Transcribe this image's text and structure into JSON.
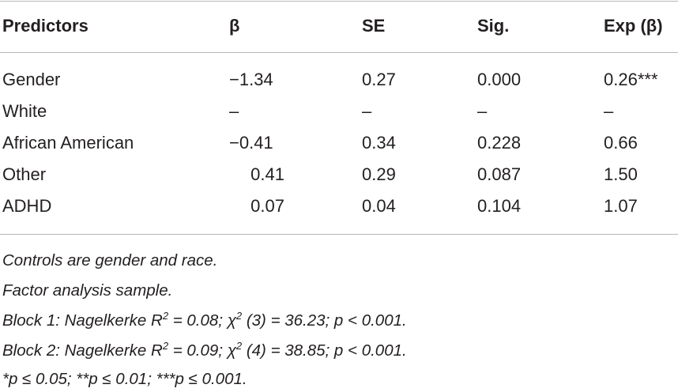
{
  "table": {
    "headers": [
      "Predictors",
      "β",
      "SE",
      "Sig.",
      "Exp (β)"
    ],
    "rows": [
      {
        "predictor": "Gender",
        "beta": "−1.34",
        "se": "0.27",
        "sig": "0.000",
        "exp": "0.26***"
      },
      {
        "predictor": "White",
        "beta": "–",
        "se": "–",
        "sig": "–",
        "exp": "–"
      },
      {
        "predictor": "African American",
        "beta": "−0.41",
        "se": "0.34",
        "sig": "0.228",
        "exp": "0.66"
      },
      {
        "predictor": "Other",
        "beta": "0.41",
        "se": "0.29",
        "sig": "0.087",
        "exp": "1.50"
      },
      {
        "predictor": "ADHD",
        "beta": "0.07",
        "se": "0.04",
        "sig": "0.104",
        "exp": "1.07"
      }
    ]
  },
  "notes": {
    "n1": "Controls are gender and race.",
    "n2": "Factor analysis sample.",
    "block1": {
      "prefix": "Block 1: Nagelkerke R",
      "sup1": "2",
      "mid": " = 0.08; χ",
      "sup2": "2",
      "suffix": " (3) = 36.23; p < 0.001."
    },
    "block2": {
      "prefix": "Block 2: Nagelkerke R",
      "sup1": "2",
      "mid": " = 0.09; χ",
      "sup2": "2",
      "suffix": " (4) = 38.85; p < 0.001."
    },
    "sig": "*p ≤ 0.05; **p ≤ 0.01; ***p ≤ 0.001."
  }
}
